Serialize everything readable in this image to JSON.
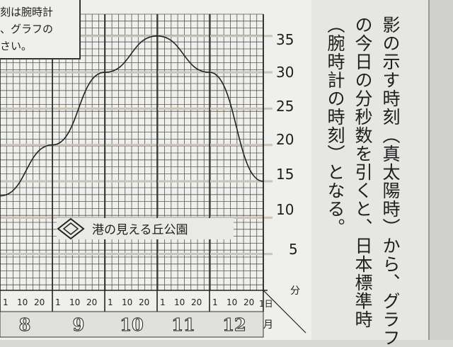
{
  "note": {
    "lines": [
      "刻は腕時計",
      "、グラフの",
      "さい。"
    ]
  },
  "y_axis": {
    "ticks": [
      "35",
      "30",
      "25",
      "20",
      "15",
      "10",
      "5"
    ],
    "unit": "分"
  },
  "logo": {
    "text": "港の見える丘公園"
  },
  "x_axis": {
    "day_ticks": [
      "1",
      "10",
      "20"
    ],
    "end_tick": "1日",
    "months": [
      "8",
      "9",
      "10",
      "11",
      "12"
    ],
    "month_unit": "月"
  },
  "explanation": {
    "columns": [
      "影の示す時刻（真太陽時）から、グラフ",
      "の今日の分秒数を引くと、日本標準時",
      "（腕時計の時刻）となる。"
    ]
  },
  "chart_data": {
    "type": "line",
    "x_unit_months": [
      "8",
      "9",
      "10",
      "11",
      "12"
    ],
    "series": [
      {
        "x": [
          "8月1日",
          "9月1日",
          "10月1日",
          "11月1日",
          "12月1日",
          "1月1日"
        ],
        "values": [
          13,
          20,
          30,
          35,
          30,
          15
        ]
      }
    ],
    "ylabel": "分",
    "ylim": [
      0,
      38
    ],
    "grid": true
  }
}
